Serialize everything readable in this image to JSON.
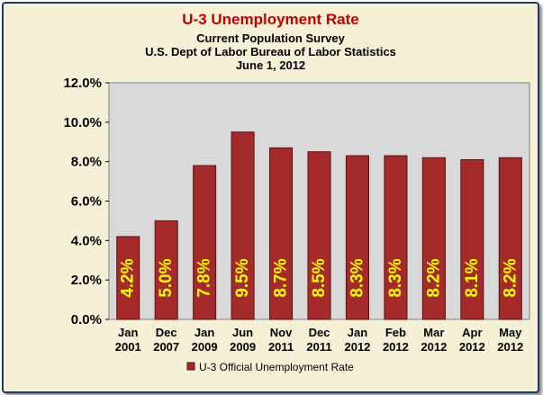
{
  "chart_data": {
    "type": "bar",
    "title": "U-3 Unemployment Rate",
    "subtitle_lines": [
      "Current Population Survey",
      "U.S. Dept of Labor Bureau of Labor Statistics",
      "June 1, 2012"
    ],
    "categories": [
      [
        "Jan",
        "2001"
      ],
      [
        "Dec",
        "2007"
      ],
      [
        "Jan",
        "2009"
      ],
      [
        "Jun",
        "2009"
      ],
      [
        "Nov",
        "2011"
      ],
      [
        "Dec",
        "2011"
      ],
      [
        "Jan",
        "2012"
      ],
      [
        "Feb",
        "2012"
      ],
      [
        "Mar",
        "2012"
      ],
      [
        "Apr",
        "2012"
      ],
      [
        "May",
        "2012"
      ]
    ],
    "series": [
      {
        "name": "U-3 Official Unemployment Rate",
        "values": [
          4.2,
          5.0,
          7.8,
          9.5,
          8.7,
          8.5,
          8.3,
          8.3,
          8.2,
          8.1,
          8.2
        ],
        "labels": [
          "4.2%",
          "5.0%",
          "7.8%",
          "9.5%",
          "8.7%",
          "8.5%",
          "8.3%",
          "8.3%",
          "8.2%",
          "8.1%",
          "8.2%"
        ]
      }
    ],
    "yticks": [
      "0.0%",
      "2.0%",
      "4.0%",
      "6.0%",
      "8.0%",
      "10.0%",
      "12.0%"
    ],
    "ylim": [
      0,
      12
    ],
    "xlabel": "",
    "ylabel": "",
    "grid": false,
    "legend": "bottom",
    "colors": {
      "bar": "#a52a2a",
      "bar_edge": "#5a1010",
      "data_label": "#ffff00",
      "plot_bg": "#d9d9d9",
      "frame_bg": "#f6f0d7",
      "title": "#c00000"
    }
  }
}
